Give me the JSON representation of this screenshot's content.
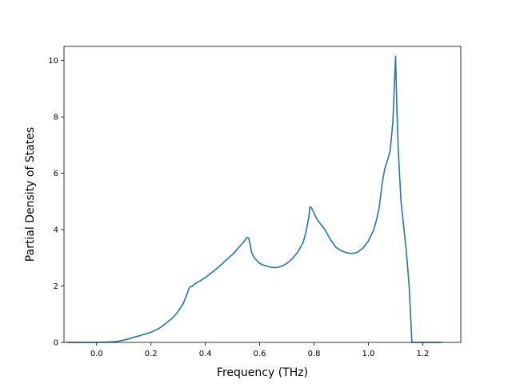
{
  "chart_data": {
    "type": "line",
    "title": "",
    "xlabel": "Frequency (THz)",
    "ylabel": "Partial Density of States",
    "xlim": [
      -0.12,
      1.34
    ],
    "ylim": [
      0,
      10.5
    ],
    "xticks": [
      0.0,
      0.2,
      0.4,
      0.6,
      0.8,
      1.0,
      1.2
    ],
    "xtick_labels": [
      "0.0",
      "0.2",
      "0.4",
      "0.6",
      "0.8",
      "1.0",
      "1.2"
    ],
    "yticks": [
      0,
      2,
      4,
      6,
      8,
      10
    ],
    "ytick_labels": [
      "0",
      "2",
      "4",
      "6",
      "8",
      "10"
    ],
    "grid": false,
    "legend": "none",
    "series": [
      {
        "color": "#1f77b4",
        "x": [
          -0.11,
          -0.05,
          0.0,
          0.03,
          0.06,
          0.08,
          0.1,
          0.12,
          0.14,
          0.16,
          0.18,
          0.2,
          0.22,
          0.24,
          0.26,
          0.28,
          0.3,
          0.32,
          0.33,
          0.34,
          0.345,
          0.35,
          0.36,
          0.38,
          0.4,
          0.42,
          0.44,
          0.46,
          0.48,
          0.5,
          0.52,
          0.54,
          0.55,
          0.555,
          0.56,
          0.565,
          0.57,
          0.58,
          0.6,
          0.62,
          0.64,
          0.66,
          0.68,
          0.7,
          0.72,
          0.74,
          0.76,
          0.77,
          0.78,
          0.785,
          0.79,
          0.8,
          0.81,
          0.82,
          0.84,
          0.86,
          0.88,
          0.9,
          0.92,
          0.94,
          0.96,
          0.98,
          1.0,
          1.02,
          1.03,
          1.04,
          1.05,
          1.06,
          1.07,
          1.08,
          1.09,
          1.095,
          1.1,
          1.105,
          1.11,
          1.12,
          1.14,
          1.15,
          1.16,
          1.18,
          1.22,
          1.27
        ],
        "y": [
          0,
          0,
          0,
          0.01,
          0.02,
          0.04,
          0.08,
          0.13,
          0.19,
          0.24,
          0.3,
          0.36,
          0.45,
          0.56,
          0.72,
          0.87,
          1.1,
          1.4,
          1.65,
          1.92,
          1.98,
          1.98,
          2.07,
          2.18,
          2.3,
          2.45,
          2.6,
          2.77,
          2.95,
          3.12,
          3.33,
          3.55,
          3.68,
          3.73,
          3.68,
          3.48,
          3.2,
          3.0,
          2.8,
          2.72,
          2.67,
          2.65,
          2.7,
          2.8,
          2.97,
          3.2,
          3.55,
          3.9,
          4.4,
          4.8,
          4.78,
          4.6,
          4.38,
          4.25,
          4.0,
          3.65,
          3.38,
          3.25,
          3.18,
          3.15,
          3.2,
          3.35,
          3.6,
          4.0,
          4.35,
          4.8,
          5.6,
          6.15,
          6.45,
          6.8,
          7.8,
          9.0,
          10.15,
          8.2,
          6.8,
          5.0,
          3.2,
          2.0,
          0,
          0,
          0,
          0
        ]
      }
    ]
  }
}
